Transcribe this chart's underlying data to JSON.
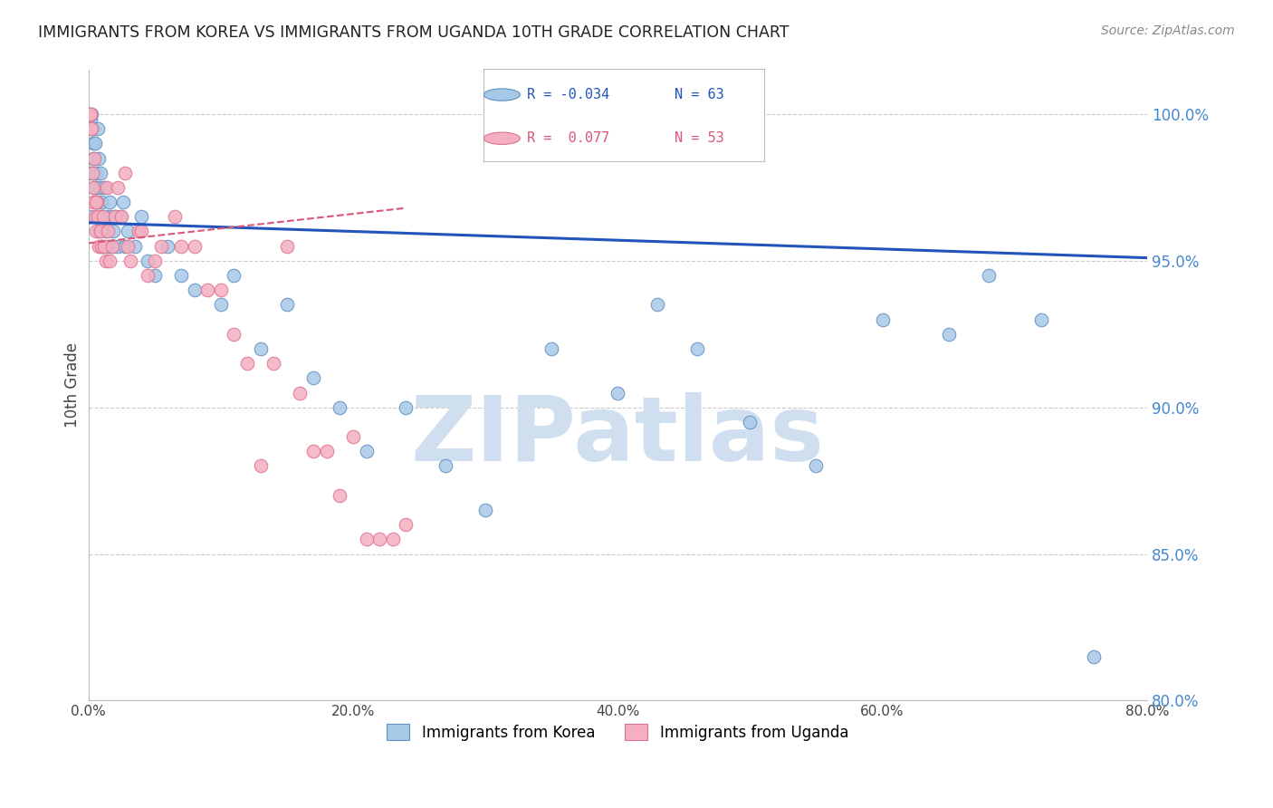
{
  "title": "IMMIGRANTS FROM KOREA VS IMMIGRANTS FROM UGANDA 10TH GRADE CORRELATION CHART",
  "source": "Source: ZipAtlas.com",
  "ylabel": "10th Grade",
  "x_tick_labels": [
    "0.0%",
    "20.0%",
    "40.0%",
    "60.0%",
    "80.0%"
  ],
  "x_tick_values": [
    0.0,
    20.0,
    40.0,
    60.0,
    80.0
  ],
  "y_right_labels": [
    "100.0%",
    "95.0%",
    "90.0%",
    "85.0%",
    "80.0%"
  ],
  "y_right_values": [
    100.0,
    95.0,
    90.0,
    85.0,
    80.0
  ],
  "xlim": [
    0.0,
    80.0
  ],
  "ylim": [
    80.0,
    101.5
  ],
  "korea_color": "#a8c8e8",
  "uganda_color": "#f4b0c0",
  "korea_edge": "#6090c0",
  "uganda_edge": "#e07090",
  "trend_korea_color": "#2255bb",
  "trend_uganda_color": "#dd5577",
  "legend_label_korea": "Immigrants from Korea",
  "legend_label_uganda": "Immigrants from Uganda",
  "watermark": "ZIPatlas",
  "watermark_color": "#d0dff0",
  "background_color": "#ffffff",
  "grid_color": "#cccccc",
  "title_color": "#222222",
  "right_axis_color": "#4488cc",
  "korea_x": [
    0.1,
    0.15,
    0.2,
    0.25,
    0.3,
    0.35,
    0.4,
    0.45,
    0.5,
    0.55,
    0.6,
    0.65,
    0.7,
    0.75,
    0.8,
    0.85,
    0.9,
    0.95,
    1.0,
    1.05,
    1.1,
    1.2,
    1.3,
    1.4,
    1.5,
    1.6,
    1.7,
    1.8,
    1.9,
    2.0,
    2.2,
    2.4,
    2.6,
    2.8,
    3.0,
    3.5,
    4.0,
    4.5,
    5.0,
    6.0,
    7.0,
    8.0,
    10.0,
    11.0,
    13.0,
    15.0,
    17.0,
    19.0,
    21.0,
    24.0,
    27.0,
    30.0,
    35.0,
    40.0,
    43.0,
    46.0,
    50.0,
    55.0,
    60.0,
    65.0,
    68.0,
    72.0,
    76.0
  ],
  "korea_y": [
    96.5,
    98.0,
    99.8,
    100.0,
    99.5,
    98.5,
    99.0,
    97.5,
    99.0,
    98.0,
    97.5,
    96.5,
    99.5,
    98.5,
    96.0,
    97.5,
    96.5,
    98.0,
    97.0,
    95.5,
    96.5,
    97.5,
    96.0,
    96.5,
    95.5,
    97.0,
    96.5,
    95.5,
    96.0,
    96.5,
    95.5,
    96.5,
    97.0,
    95.5,
    96.0,
    95.5,
    96.5,
    95.0,
    94.5,
    95.5,
    94.5,
    94.0,
    93.5,
    94.5,
    92.0,
    93.5,
    91.0,
    90.0,
    88.5,
    90.0,
    88.0,
    86.5,
    92.0,
    90.5,
    93.5,
    92.0,
    89.5,
    88.0,
    93.0,
    92.5,
    94.5,
    93.0,
    81.5
  ],
  "uganda_x": [
    0.1,
    0.15,
    0.2,
    0.25,
    0.3,
    0.35,
    0.4,
    0.45,
    0.5,
    0.6,
    0.65,
    0.7,
    0.8,
    0.9,
    1.0,
    1.1,
    1.2,
    1.3,
    1.4,
    1.5,
    1.6,
    1.8,
    2.0,
    2.2,
    2.5,
    2.8,
    3.2,
    3.8,
    4.5,
    5.5,
    6.5,
    8.0,
    10.0,
    12.0,
    14.0,
    16.0,
    18.0,
    20.0,
    22.0,
    24.0,
    3.0,
    4.0,
    5.0,
    7.0,
    9.0,
    11.0,
    13.0,
    15.0,
    17.0,
    19.0,
    21.0,
    23.0,
    0.55
  ],
  "uganda_y": [
    100.0,
    99.5,
    100.0,
    99.5,
    98.0,
    97.5,
    97.0,
    98.5,
    96.5,
    96.0,
    97.0,
    96.5,
    95.5,
    96.0,
    95.5,
    96.5,
    95.5,
    95.0,
    97.5,
    96.0,
    95.0,
    95.5,
    96.5,
    97.5,
    96.5,
    98.0,
    95.0,
    96.0,
    94.5,
    95.5,
    96.5,
    95.5,
    94.0,
    91.5,
    91.5,
    90.5,
    88.5,
    89.0,
    85.5,
    86.0,
    95.5,
    96.0,
    95.0,
    95.5,
    94.0,
    92.5,
    88.0,
    95.5,
    88.5,
    87.0,
    85.5,
    85.5,
    97.0
  ],
  "trend_korea_x0": 0.0,
  "trend_korea_x1": 80.0,
  "trend_korea_y0": 96.3,
  "trend_korea_y1": 95.1,
  "trend_uganda_x0": 0.0,
  "trend_uganda_x1": 24.0,
  "trend_uganda_y0": 95.6,
  "trend_uganda_y1": 96.8
}
